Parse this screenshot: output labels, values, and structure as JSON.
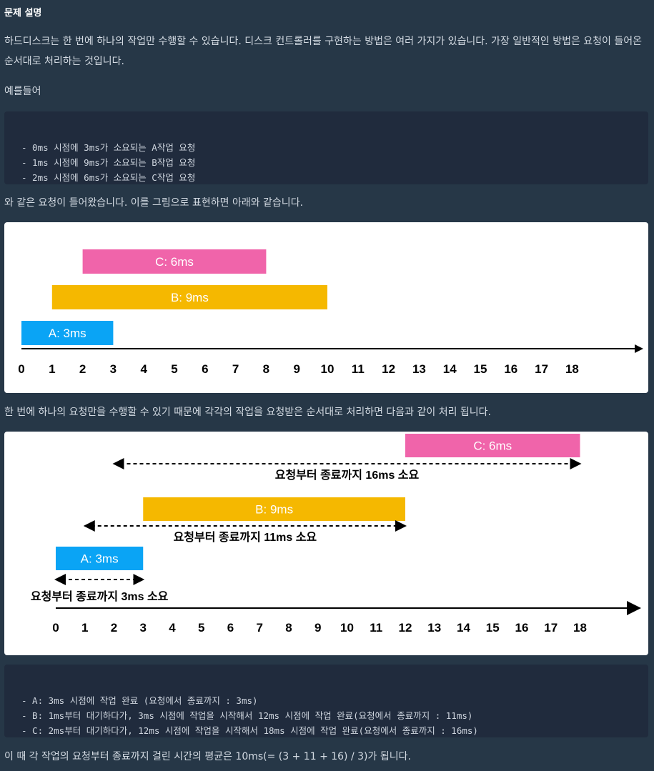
{
  "heading": "문제 설명",
  "intro": "하드디스크는 한 번에 하나의 작업만 수행할 수 있습니다. 디스크 컨트롤러를 구현하는 방법은 여러 가지가 있습니다. 가장 일반적인 방법은 요청이 들어온 순서대로 처리하는 것입니다.",
  "example_label": "예를들어",
  "example_code": [
    "- 0ms 시점에 3ms가 소요되는 A작업 요청",
    "- 1ms 시점에 9ms가 소요되는 B작업 요청",
    "- 2ms 시점에 6ms가 소요되는 C작업 요청"
  ],
  "figure_intro": "와 같은 요청이 들어왔습니다. 이를 그림으로 표현하면 아래와 같습니다.",
  "diagrams": [
    {
      "ticks": [
        0,
        1,
        2,
        3,
        4,
        5,
        6,
        7,
        8,
        9,
        10,
        11,
        12,
        13,
        14,
        15,
        16,
        17,
        18
      ],
      "bars": [
        {
          "label": "A: 3ms",
          "start": 0,
          "end": 3,
          "color": "#0aa4f5"
        },
        {
          "label": "B: 9ms",
          "start": 1,
          "end": 10,
          "color": "#f5b800"
        },
        {
          "label": "C: 6ms",
          "start": 2,
          "end": 8,
          "color": "#f064aa"
        }
      ]
    },
    {
      "ticks": [
        0,
        1,
        2,
        3,
        4,
        5,
        6,
        7,
        8,
        9,
        10,
        11,
        12,
        13,
        14,
        15,
        16,
        17,
        18
      ],
      "bars": [
        {
          "label": "A: 3ms",
          "start": 0,
          "end": 3,
          "color": "#0aa4f5"
        },
        {
          "label": "B: 9ms",
          "start": 3,
          "end": 12,
          "color": "#f5b800"
        },
        {
          "label": "C: 6ms",
          "start": 12,
          "end": 18,
          "color": "#f064aa"
        }
      ],
      "arrows": [
        {
          "from": 0,
          "to": 3,
          "label": "요청부터 종료까지 3ms 소요"
        },
        {
          "from": 1,
          "to": 12,
          "label": "요청부터 종료까지 11ms 소요"
        },
        {
          "from": 2,
          "to": 18,
          "label": "요청부터 종료까지 16ms 소요"
        }
      ]
    }
  ],
  "fifo_intro": "한 번에 하나의 요청만을 수행할 수 있기 때문에 각각의 작업을 요청받은 순서대로 처리하면 다음과 같이 처리 됩니다.",
  "result_code": [
    "- A: 3ms 시점에 작업 완료 (요청에서 종료까지 : 3ms)",
    "- B: 1ms부터 대기하다가, 3ms 시점에 작업을 시작해서 12ms 시점에 작업 완료(요청에서 종료까지 : 11ms)",
    "- C: 2ms부터 대기하다가, 12ms 시점에 작업을 시작해서 18ms 시점에 작업 완료(요청에서 종료까지 : 16ms)"
  ],
  "conclusion": "이 때 각 작업의 요청부터 종료까지 걸린 시간의 평균은 10ms(= (3 + 11 + 16) / 3)가 됩니다."
}
